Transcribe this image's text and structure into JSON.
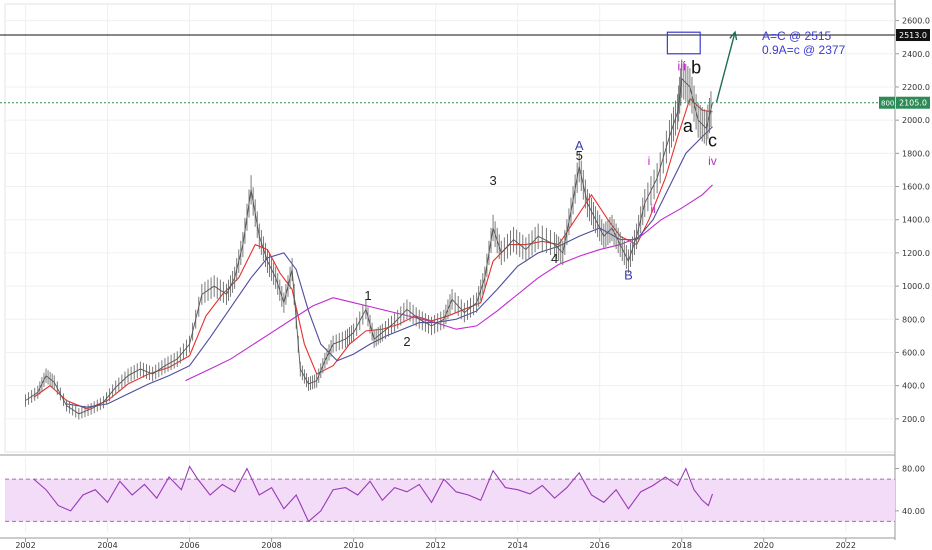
{
  "chart_data": {
    "type": "line",
    "title": "",
    "xlabel": "",
    "ylabel": "",
    "xlim": [
      2001.5,
      2023.2
    ],
    "ylim": [
      0,
      2700
    ],
    "grid": true,
    "x_ticks": [
      "2002",
      "2004",
      "2006",
      "2008",
      "2010",
      "2012",
      "2014",
      "2016",
      "2018",
      "2020",
      "2022"
    ],
    "y_ticks": [
      "200.0",
      "400.0",
      "600.0",
      "800.0",
      "1000.0",
      "1200.0",
      "1400.0",
      "1600.0",
      "1800.0",
      "2000.0",
      "2200.0",
      "2400.0",
      "2600.0"
    ],
    "price_series": {
      "name": "",
      "color": "#555555",
      "points": [
        [
          2002.0,
          310
        ],
        [
          2002.3,
          360
        ],
        [
          2002.5,
          460
        ],
        [
          2002.7,
          420
        ],
        [
          2003.0,
          280
        ],
        [
          2003.3,
          230
        ],
        [
          2003.6,
          260
        ],
        [
          2003.9,
          300
        ],
        [
          2004.2,
          390
        ],
        [
          2004.5,
          460
        ],
        [
          2004.8,
          500
        ],
        [
          2005.1,
          470
        ],
        [
          2005.4,
          520
        ],
        [
          2005.7,
          560
        ],
        [
          2006.0,
          650
        ],
        [
          2006.3,
          950
        ],
        [
          2006.6,
          1000
        ],
        [
          2006.9,
          950
        ],
        [
          2007.1,
          1050
        ],
        [
          2007.3,
          1250
        ],
        [
          2007.5,
          1580
        ],
        [
          2007.7,
          1300
        ],
        [
          2007.9,
          1150
        ],
        [
          2008.1,
          1050
        ],
        [
          2008.3,
          900
        ],
        [
          2008.5,
          1100
        ],
        [
          2008.7,
          500
        ],
        [
          2008.9,
          410
        ],
        [
          2009.1,
          430
        ],
        [
          2009.3,
          550
        ],
        [
          2009.5,
          650
        ],
        [
          2009.8,
          680
        ],
        [
          2010.0,
          720
        ],
        [
          2010.3,
          860
        ],
        [
          2010.5,
          680
        ],
        [
          2010.7,
          720
        ],
        [
          2011.0,
          780
        ],
        [
          2011.3,
          860
        ],
        [
          2011.6,
          800
        ],
        [
          2011.9,
          760
        ],
        [
          2012.2,
          800
        ],
        [
          2012.4,
          920
        ],
        [
          2012.7,
          840
        ],
        [
          2013.0,
          900
        ],
        [
          2013.2,
          1050
        ],
        [
          2013.4,
          1350
        ],
        [
          2013.6,
          1200
        ],
        [
          2013.9,
          1280
        ],
        [
          2014.2,
          1220
        ],
        [
          2014.5,
          1300
        ],
        [
          2014.9,
          1250
        ],
        [
          2015.1,
          1200
        ],
        [
          2015.3,
          1450
        ],
        [
          2015.5,
          1720
        ],
        [
          2015.7,
          1500
        ],
        [
          2015.9,
          1400
        ],
        [
          2016.1,
          1300
        ],
        [
          2016.3,
          1350
        ],
        [
          2016.5,
          1250
        ],
        [
          2016.7,
          1150
        ],
        [
          2016.9,
          1300
        ],
        [
          2017.1,
          1500
        ],
        [
          2017.4,
          1650
        ],
        [
          2017.7,
          1900
        ],
        [
          2017.9,
          2050
        ],
        [
          2018.0,
          2250
        ],
        [
          2018.2,
          2200
        ],
        [
          2018.4,
          2000
        ],
        [
          2018.6,
          1950
        ],
        [
          2018.75,
          2105
        ]
      ]
    },
    "ma_series": [
      {
        "name": "",
        "color": "#e8302a",
        "points": [
          [
            2002.2,
            330
          ],
          [
            2002.6,
            400
          ],
          [
            2003.0,
            310
          ],
          [
            2003.5,
            260
          ],
          [
            2004.0,
            310
          ],
          [
            2004.5,
            410
          ],
          [
            2005.0,
            470
          ],
          [
            2005.5,
            510
          ],
          [
            2006.0,
            580
          ],
          [
            2006.4,
            820
          ],
          [
            2006.8,
            950
          ],
          [
            2007.2,
            1050
          ],
          [
            2007.6,
            1250
          ],
          [
            2007.9,
            1220
          ],
          [
            2008.2,
            1080
          ],
          [
            2008.5,
            980
          ],
          [
            2008.8,
            650
          ],
          [
            2009.1,
            470
          ],
          [
            2009.5,
            520
          ],
          [
            2009.9,
            650
          ],
          [
            2010.3,
            730
          ],
          [
            2010.7,
            740
          ],
          [
            2011.1,
            770
          ],
          [
            2011.5,
            820
          ],
          [
            2011.9,
            790
          ],
          [
            2012.3,
            820
          ],
          [
            2012.7,
            860
          ],
          [
            2013.1,
            900
          ],
          [
            2013.4,
            1150
          ],
          [
            2013.8,
            1250
          ],
          [
            2014.2,
            1250
          ],
          [
            2014.6,
            1270
          ],
          [
            2015.0,
            1250
          ],
          [
            2015.4,
            1400
          ],
          [
            2015.8,
            1550
          ],
          [
            2016.2,
            1400
          ],
          [
            2016.5,
            1300
          ],
          [
            2016.9,
            1250
          ],
          [
            2017.2,
            1400
          ],
          [
            2017.6,
            1650
          ],
          [
            2017.9,
            1900
          ],
          [
            2018.2,
            2130
          ],
          [
            2018.5,
            2060
          ],
          [
            2018.75,
            2050
          ]
        ]
      },
      {
        "name": "",
        "color": "#4c4c9e",
        "points": [
          [
            2003.0,
            290
          ],
          [
            2003.5,
            270
          ],
          [
            2004.0,
            290
          ],
          [
            2004.5,
            350
          ],
          [
            2005.0,
            410
          ],
          [
            2005.5,
            460
          ],
          [
            2006.0,
            520
          ],
          [
            2006.5,
            690
          ],
          [
            2007.0,
            870
          ],
          [
            2007.5,
            1050
          ],
          [
            2007.9,
            1170
          ],
          [
            2008.3,
            1200
          ],
          [
            2008.6,
            1100
          ],
          [
            2008.9,
            850
          ],
          [
            2009.2,
            650
          ],
          [
            2009.6,
            550
          ],
          [
            2010.0,
            590
          ],
          [
            2010.4,
            650
          ],
          [
            2010.8,
            700
          ],
          [
            2011.2,
            740
          ],
          [
            2011.6,
            780
          ],
          [
            2012.0,
            780
          ],
          [
            2012.5,
            800
          ],
          [
            2013.0,
            850
          ],
          [
            2013.5,
            980
          ],
          [
            2014.0,
            1120
          ],
          [
            2014.5,
            1200
          ],
          [
            2015.0,
            1240
          ],
          [
            2015.5,
            1300
          ],
          [
            2016.0,
            1350
          ],
          [
            2016.5,
            1280
          ],
          [
            2016.9,
            1280
          ],
          [
            2017.3,
            1400
          ],
          [
            2017.7,
            1600
          ],
          [
            2018.1,
            1800
          ],
          [
            2018.5,
            1900
          ],
          [
            2018.75,
            1960
          ]
        ]
      },
      {
        "name": "",
        "color": "#c02ad0",
        "points": [
          [
            2005.9,
            430
          ],
          [
            2006.5,
            500
          ],
          [
            2007.0,
            560
          ],
          [
            2007.5,
            640
          ],
          [
            2008.0,
            720
          ],
          [
            2008.5,
            800
          ],
          [
            2009.0,
            880
          ],
          [
            2009.5,
            930
          ],
          [
            2010.0,
            900
          ],
          [
            2010.5,
            870
          ],
          [
            2011.0,
            840
          ],
          [
            2011.5,
            810
          ],
          [
            2012.0,
            780
          ],
          [
            2012.5,
            740
          ],
          [
            2013.0,
            760
          ],
          [
            2013.5,
            850
          ],
          [
            2014.0,
            950
          ],
          [
            2014.5,
            1050
          ],
          [
            2015.0,
            1130
          ],
          [
            2015.5,
            1180
          ],
          [
            2016.0,
            1220
          ],
          [
            2016.5,
            1250
          ],
          [
            2017.0,
            1300
          ],
          [
            2017.5,
            1400
          ],
          [
            2018.0,
            1470
          ],
          [
            2018.5,
            1550
          ],
          [
            2018.75,
            1610
          ]
        ]
      }
    ],
    "horizontal_lines": [
      {
        "value": 2513.0,
        "label": "2513.0",
        "color": "#111111"
      },
      {
        "value": 2105.0,
        "label": "2105.0",
        "prefix": "8001",
        "color": "#2e8b57"
      }
    ],
    "target_box": {
      "x": [
        2017.65,
        2018.45
      ],
      "y": [
        2400,
        2530
      ]
    },
    "target_arrow": {
      "from": [
        2018.85,
        2110
      ],
      "to": [
        2019.3,
        2530
      ]
    },
    "target_text": [
      "A=C @ 2515",
      "0.9A=c @ 2377"
    ],
    "wave_labels": [
      {
        "text": "1",
        "x": 2010.35,
        "y": 915,
        "color": "#222222",
        "size": 13
      },
      {
        "text": "2",
        "x": 2011.3,
        "y": 640,
        "color": "#222222",
        "size": 13
      },
      {
        "text": "3",
        "x": 2013.4,
        "y": 1610,
        "color": "#222222",
        "size": 13
      },
      {
        "text": "4",
        "x": 2014.9,
        "y": 1140,
        "color": "#222222",
        "size": 13
      },
      {
        "text": "5",
        "x": 2015.5,
        "y": 1760,
        "color": "#222222",
        "size": 13
      },
      {
        "text": "A",
        "x": 2015.5,
        "y": 1820,
        "color": "#3b3bb0",
        "size": 13
      },
      {
        "text": "B",
        "x": 2016.7,
        "y": 1040,
        "color": "#3b3bb0",
        "size": 13
      },
      {
        "text": "i",
        "x": 2017.2,
        "y": 1730,
        "color": "#c02ad0",
        "size": 12
      },
      {
        "text": "ii",
        "x": 2017.3,
        "y": 1440,
        "color": "#c02ad0",
        "size": 12
      },
      {
        "text": "iii",
        "x": 2018.0,
        "y": 2300,
        "color": "#c02ad0",
        "size": 13
      },
      {
        "text": "iv",
        "x": 2018.75,
        "y": 1730,
        "color": "#c02ad0",
        "size": 12
      },
      {
        "text": "a",
        "x": 2018.15,
        "y": 1930,
        "color": "#111111",
        "size": 18
      },
      {
        "text": "b",
        "x": 2018.35,
        "y": 2280,
        "color": "#111111",
        "size": 18
      },
      {
        "text": "c",
        "x": 2018.75,
        "y": 1840,
        "color": "#111111",
        "size": 18
      }
    ],
    "rsi": {
      "y_ticks": [
        "40.00",
        "80.00"
      ],
      "ylim": [
        20,
        90
      ],
      "band": [
        30,
        70
      ],
      "color": "#9b38b8",
      "points": [
        [
          2002.2,
          70
        ],
        [
          2002.5,
          60
        ],
        [
          2002.8,
          45
        ],
        [
          2003.1,
          40
        ],
        [
          2003.4,
          55
        ],
        [
          2003.7,
          60
        ],
        [
          2004.0,
          48
        ],
        [
          2004.3,
          68
        ],
        [
          2004.6,
          55
        ],
        [
          2004.9,
          65
        ],
        [
          2005.2,
          52
        ],
        [
          2005.5,
          72
        ],
        [
          2005.8,
          60
        ],
        [
          2006.0,
          82
        ],
        [
          2006.2,
          70
        ],
        [
          2006.5,
          55
        ],
        [
          2006.8,
          65
        ],
        [
          2007.1,
          58
        ],
        [
          2007.4,
          80
        ],
        [
          2007.7,
          55
        ],
        [
          2008.0,
          62
        ],
        [
          2008.3,
          42
        ],
        [
          2008.6,
          55
        ],
        [
          2008.9,
          30
        ],
        [
          2009.2,
          40
        ],
        [
          2009.5,
          60
        ],
        [
          2009.8,
          62
        ],
        [
          2010.1,
          55
        ],
        [
          2010.4,
          68
        ],
        [
          2010.7,
          50
        ],
        [
          2011.0,
          62
        ],
        [
          2011.3,
          58
        ],
        [
          2011.6,
          65
        ],
        [
          2011.9,
          48
        ],
        [
          2012.2,
          70
        ],
        [
          2012.5,
          58
        ],
        [
          2012.8,
          55
        ],
        [
          2013.1,
          50
        ],
        [
          2013.4,
          78
        ],
        [
          2013.7,
          62
        ],
        [
          2014.0,
          60
        ],
        [
          2014.3,
          56
        ],
        [
          2014.6,
          64
        ],
        [
          2014.9,
          52
        ],
        [
          2015.2,
          62
        ],
        [
          2015.5,
          76
        ],
        [
          2015.8,
          55
        ],
        [
          2016.1,
          48
        ],
        [
          2016.4,
          60
        ],
        [
          2016.7,
          42
        ],
        [
          2017.0,
          58
        ],
        [
          2017.3,
          64
        ],
        [
          2017.6,
          72
        ],
        [
          2017.9,
          64
        ],
        [
          2018.1,
          80
        ],
        [
          2018.3,
          60
        ],
        [
          2018.5,
          50
        ],
        [
          2018.65,
          45
        ],
        [
          2018.75,
          56
        ]
      ]
    }
  }
}
